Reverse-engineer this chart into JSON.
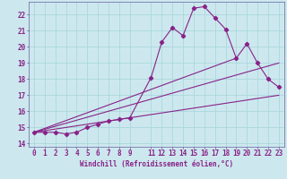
{
  "xlabel": "Windchill (Refroidissement éolien,°C)",
  "bg_color": "#cce8ee",
  "line_color": "#882288",
  "grid_color": "#aad8de",
  "spine_color": "#7777aa",
  "xlim": [
    -0.5,
    23.5
  ],
  "ylim": [
    13.8,
    22.8
  ],
  "yticks": [
    14,
    15,
    16,
    17,
    18,
    19,
    20,
    21,
    22
  ],
  "xticks": [
    0,
    1,
    2,
    3,
    4,
    5,
    6,
    7,
    8,
    9,
    11,
    12,
    13,
    14,
    15,
    16,
    17,
    18,
    19,
    20,
    21,
    22,
    23
  ],
  "series": [
    [
      0,
      14.7
    ],
    [
      1,
      14.7
    ],
    [
      2,
      14.7
    ],
    [
      3,
      14.6
    ],
    [
      4,
      14.7
    ],
    [
      5,
      15.0
    ],
    [
      6,
      15.2
    ],
    [
      7,
      15.4
    ],
    [
      8,
      15.5
    ],
    [
      9,
      15.6
    ],
    [
      11,
      18.1
    ],
    [
      12,
      20.3
    ],
    [
      13,
      21.2
    ],
    [
      14,
      20.7
    ],
    [
      15,
      22.4
    ],
    [
      16,
      22.5
    ],
    [
      17,
      21.8
    ],
    [
      18,
      21.1
    ],
    [
      19,
      19.3
    ],
    [
      20,
      20.2
    ],
    [
      21,
      19.0
    ],
    [
      22,
      18.0
    ],
    [
      23,
      17.5
    ]
  ],
  "diagonal_lines": [
    [
      [
        0,
        14.7
      ],
      [
        23,
        17.0
      ]
    ],
    [
      [
        0,
        14.7
      ],
      [
        23,
        19.0
      ]
    ],
    [
      [
        0,
        14.7
      ],
      [
        19,
        19.3
      ]
    ]
  ],
  "xlabel_fontsize": 5.5,
  "tick_fontsize": 5.5,
  "marker_size": 2.2,
  "line_width": 0.8
}
